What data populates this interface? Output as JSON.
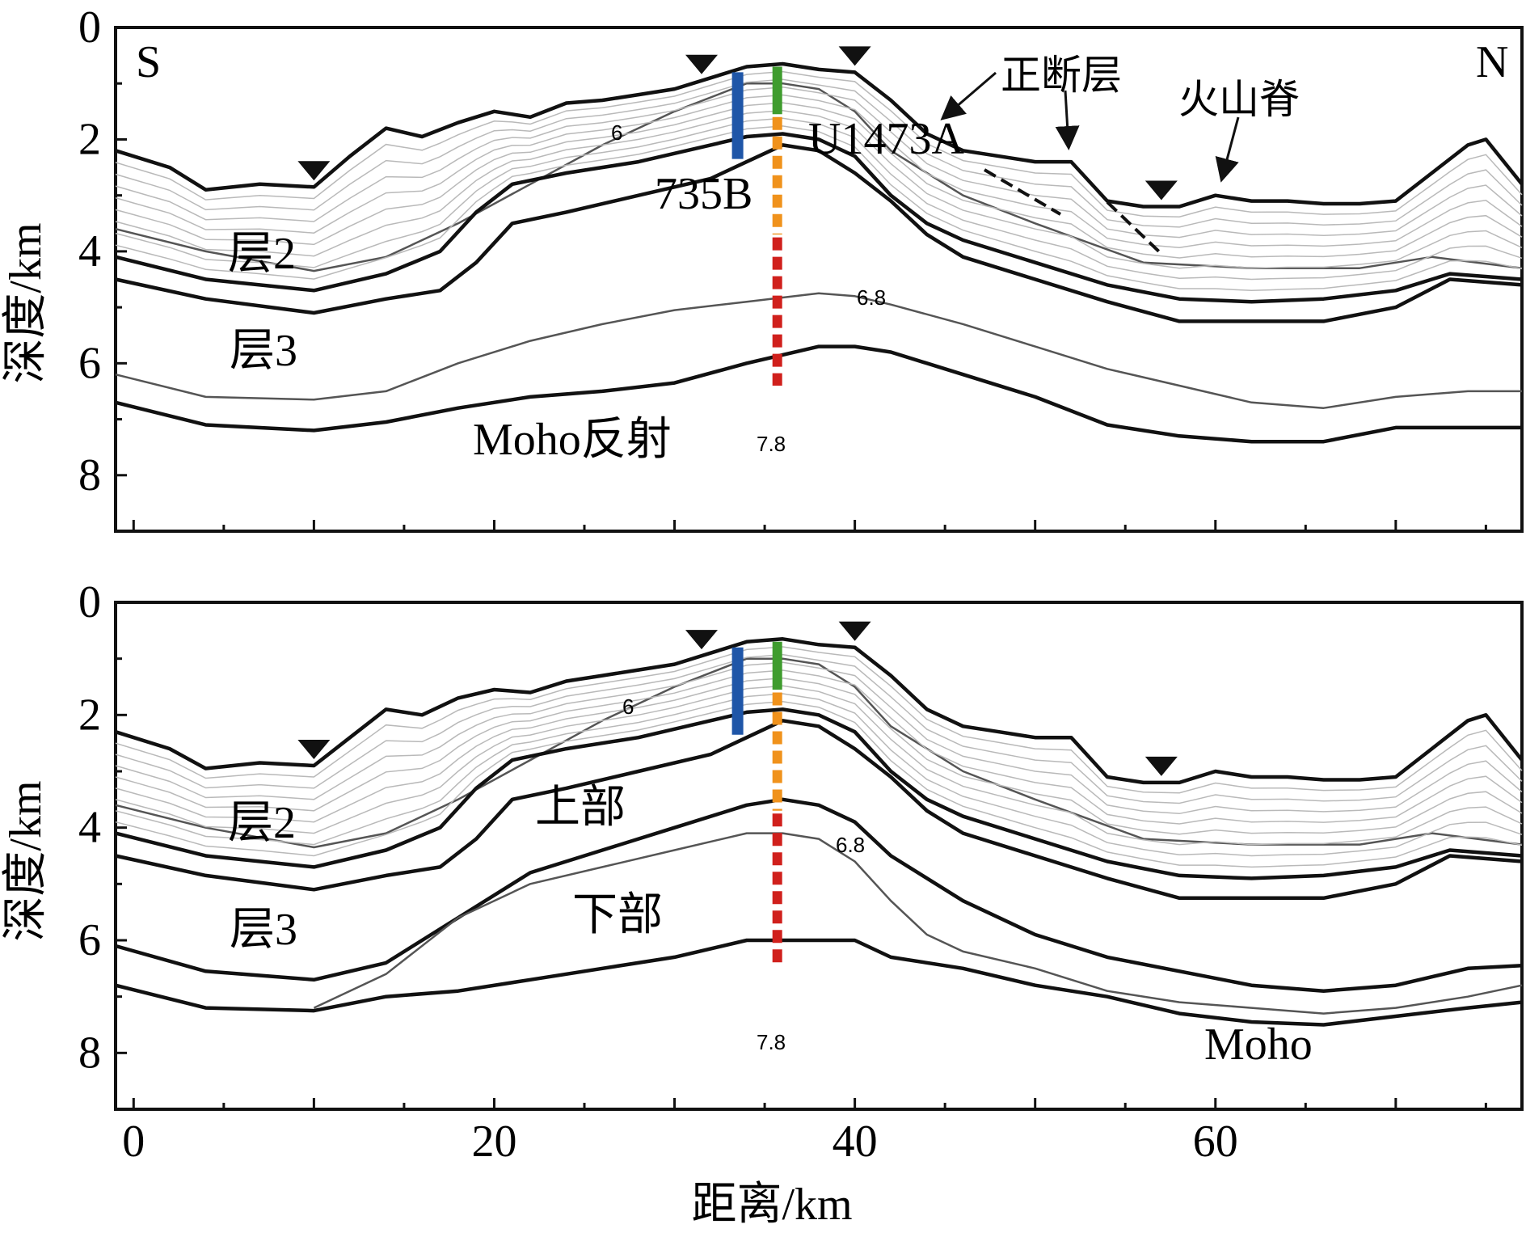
{
  "chart_data": [
    {
      "type": "line",
      "title": "",
      "xlabel": "距离/km",
      "ylabel": "深度/km",
      "xlim": [
        -1,
        77
      ],
      "ylim": [
        9,
        0
      ],
      "x_ticks": [
        0,
        20,
        40,
        60
      ],
      "y_ticks": [
        0,
        2,
        4,
        6,
        8
      ],
      "direction_labels": {
        "left": "S",
        "right": "N"
      },
      "layer_labels": [
        "层2",
        "层3",
        "Moho反射"
      ],
      "annotations": [
        "正断层",
        "火山脊",
        "U1473A",
        "735B"
      ],
      "contour_labels": [
        "6",
        "6.8",
        "7.8"
      ],
      "series": [
        {
          "name": "seafloor",
          "x": [
            -1,
            2,
            4,
            7,
            10,
            12,
            14,
            16,
            18,
            20,
            22,
            24,
            26,
            28,
            30,
            32,
            34,
            36,
            38,
            40,
            42,
            44,
            46,
            48,
            50,
            52,
            54,
            56,
            58,
            60,
            62,
            64,
            66,
            68,
            70,
            72,
            74,
            75,
            77
          ],
          "y": [
            2.2,
            2.5,
            2.9,
            2.8,
            2.85,
            2.3,
            1.8,
            1.95,
            1.7,
            1.5,
            1.6,
            1.35,
            1.3,
            1.2,
            1.1,
            0.9,
            0.7,
            0.65,
            0.75,
            0.8,
            1.3,
            1.9,
            2.2,
            2.3,
            2.4,
            2.4,
            3.1,
            3.2,
            3.2,
            3.0,
            3.1,
            3.1,
            3.15,
            3.15,
            3.1,
            2.6,
            2.1,
            2.0,
            2.8
          ]
        },
        {
          "name": "contour 6",
          "x": [
            -1,
            4,
            10,
            14,
            18,
            22,
            26,
            30,
            34,
            36,
            38,
            40,
            42,
            46,
            50,
            56,
            62,
            68,
            72,
            77
          ],
          "y": [
            3.6,
            4.0,
            4.35,
            4.1,
            3.5,
            2.8,
            2.1,
            1.5,
            1.0,
            1.0,
            1.1,
            1.5,
            2.2,
            3.0,
            3.5,
            4.2,
            4.3,
            4.3,
            4.1,
            4.3
          ]
        },
        {
          "name": "base layer 2",
          "x": [
            -1,
            4,
            10,
            14,
            17,
            19,
            21,
            24,
            28,
            32,
            34,
            36,
            38,
            40,
            42,
            44,
            46,
            50,
            54,
            58,
            62,
            66,
            70,
            73,
            77
          ],
          "y": [
            4.1,
            4.5,
            4.7,
            4.4,
            4.0,
            3.3,
            2.8,
            2.6,
            2.4,
            2.1,
            1.95,
            1.9,
            2.0,
            2.3,
            3.0,
            3.5,
            3.8,
            4.2,
            4.6,
            4.85,
            4.9,
            4.85,
            4.7,
            4.4,
            4.5
          ]
        },
        {
          "name": "top layer 3",
          "x": [
            -1,
            4,
            10,
            14,
            17,
            19,
            21,
            24,
            28,
            32,
            34,
            36,
            38,
            40,
            42,
            44,
            46,
            50,
            54,
            58,
            62,
            66,
            70,
            73,
            77
          ],
          "y": [
            4.5,
            4.85,
            5.1,
            4.85,
            4.7,
            4.2,
            3.5,
            3.3,
            3.0,
            2.7,
            2.4,
            2.1,
            2.2,
            2.6,
            3.1,
            3.7,
            4.1,
            4.5,
            4.9,
            5.25,
            5.25,
            5.25,
            5.0,
            4.5,
            4.6
          ]
        },
        {
          "name": "contour 6.8",
          "x": [
            -1,
            4,
            10,
            14,
            18,
            22,
            26,
            30,
            34,
            38,
            40,
            42,
            46,
            50,
            54,
            58,
            62,
            66,
            70,
            74,
            77
          ],
          "y": [
            6.2,
            6.6,
            6.65,
            6.5,
            6.0,
            5.6,
            5.3,
            5.05,
            4.9,
            4.75,
            4.8,
            4.95,
            5.3,
            5.7,
            6.1,
            6.4,
            6.7,
            6.8,
            6.6,
            6.5,
            6.5
          ]
        },
        {
          "name": "Moho",
          "x": [
            -1,
            4,
            10,
            14,
            18,
            22,
            26,
            30,
            34,
            38,
            40,
            42,
            46,
            50,
            54,
            58,
            62,
            66,
            70,
            74,
            77
          ],
          "y": [
            6.7,
            7.1,
            7.2,
            7.05,
            6.8,
            6.6,
            6.5,
            6.35,
            6.0,
            5.7,
            5.7,
            5.8,
            6.2,
            6.6,
            7.1,
            7.3,
            7.4,
            7.4,
            7.15,
            7.15,
            7.15
          ]
        }
      ]
    },
    {
      "type": "line",
      "title": "",
      "xlabel": "距离/km",
      "ylabel": "深度/km",
      "xlim": [
        -1,
        77
      ],
      "ylim": [
        9,
        0
      ],
      "x_ticks": [
        0,
        20,
        40,
        60
      ],
      "y_ticks": [
        0,
        2,
        4,
        6,
        8
      ],
      "layer_labels": [
        "层2",
        "层3",
        "上部",
        "下部",
        "Moho"
      ],
      "contour_labels": [
        "6",
        "6.8",
        "7.8"
      ],
      "series": [
        {
          "name": "seafloor",
          "x": [
            -1,
            2,
            4,
            7,
            10,
            12,
            14,
            16,
            18,
            20,
            22,
            24,
            26,
            28,
            30,
            32,
            34,
            36,
            38,
            40,
            42,
            44,
            46,
            48,
            50,
            52,
            54,
            56,
            58,
            60,
            62,
            64,
            66,
            68,
            70,
            72,
            74,
            75,
            77
          ],
          "y": [
            2.3,
            2.6,
            2.95,
            2.85,
            2.9,
            2.4,
            1.9,
            2.0,
            1.7,
            1.55,
            1.6,
            1.4,
            1.3,
            1.2,
            1.1,
            0.9,
            0.7,
            0.65,
            0.75,
            0.8,
            1.3,
            1.9,
            2.2,
            2.3,
            2.4,
            2.4,
            3.1,
            3.2,
            3.2,
            3.0,
            3.1,
            3.1,
            3.15,
            3.15,
            3.1,
            2.6,
            2.1,
            2.0,
            2.8
          ]
        },
        {
          "name": "contour 6",
          "x": [
            -1,
            4,
            10,
            14,
            18,
            22,
            26,
            30,
            34,
            36,
            38,
            40,
            42,
            46,
            50,
            56,
            62,
            68,
            72,
            77
          ],
          "y": [
            3.6,
            4.0,
            4.35,
            4.1,
            3.5,
            2.8,
            2.1,
            1.5,
            1.0,
            1.0,
            1.1,
            1.5,
            2.2,
            3.0,
            3.5,
            4.2,
            4.3,
            4.3,
            4.1,
            4.3
          ]
        },
        {
          "name": "base layer 2",
          "x": [
            -1,
            4,
            10,
            14,
            17,
            19,
            21,
            24,
            28,
            32,
            34,
            36,
            38,
            40,
            42,
            44,
            46,
            50,
            54,
            58,
            62,
            66,
            70,
            73,
            77
          ],
          "y": [
            4.1,
            4.5,
            4.7,
            4.4,
            4.0,
            3.3,
            2.8,
            2.6,
            2.4,
            2.1,
            1.95,
            1.9,
            2.0,
            2.3,
            3.0,
            3.5,
            3.8,
            4.2,
            4.6,
            4.85,
            4.9,
            4.85,
            4.7,
            4.4,
            4.5
          ]
        },
        {
          "name": "top layer 3",
          "x": [
            -1,
            4,
            10,
            14,
            17,
            19,
            21,
            24,
            28,
            32,
            34,
            36,
            38,
            40,
            42,
            44,
            46,
            50,
            54,
            58,
            62,
            66,
            70,
            73,
            77
          ],
          "y": [
            4.5,
            4.85,
            5.1,
            4.85,
            4.7,
            4.2,
            3.5,
            3.3,
            3.0,
            2.7,
            2.4,
            2.1,
            2.2,
            2.6,
            3.1,
            3.7,
            4.1,
            4.5,
            4.9,
            5.25,
            5.25,
            5.25,
            5.0,
            4.5,
            4.6
          ]
        },
        {
          "name": "upper-lower boundary",
          "x": [
            -1,
            4,
            10,
            14,
            18,
            22,
            26,
            30,
            34,
            36,
            38,
            40,
            42,
            46,
            50,
            54,
            58,
            62,
            66,
            70,
            74,
            77
          ],
          "y": [
            6.1,
            6.55,
            6.7,
            6.4,
            5.6,
            4.8,
            4.4,
            4.0,
            3.6,
            3.5,
            3.6,
            3.9,
            4.5,
            5.3,
            5.9,
            6.3,
            6.55,
            6.8,
            6.9,
            6.8,
            6.5,
            6.45
          ]
        },
        {
          "name": "contour 6.8",
          "x": [
            10,
            14,
            18,
            22,
            26,
            30,
            34,
            36,
            38,
            40,
            42,
            44,
            46,
            50,
            54,
            58,
            62,
            66,
            70,
            74,
            77
          ],
          "y": [
            7.2,
            6.6,
            5.6,
            5.0,
            4.7,
            4.4,
            4.1,
            4.1,
            4.2,
            4.6,
            5.3,
            5.9,
            6.2,
            6.5,
            6.9,
            7.1,
            7.2,
            7.3,
            7.2,
            7.0,
            6.8
          ]
        },
        {
          "name": "Moho",
          "x": [
            -1,
            4,
            10,
            14,
            18,
            22,
            26,
            30,
            34,
            36,
            38,
            40,
            42,
            46,
            50,
            54,
            58,
            62,
            66,
            70,
            74,
            77
          ],
          "y": [
            6.8,
            7.2,
            7.25,
            7.0,
            6.9,
            6.7,
            6.5,
            6.3,
            6.0,
            6.0,
            6.0,
            6.0,
            6.3,
            6.5,
            6.8,
            7.0,
            7.3,
            7.45,
            7.5,
            7.35,
            7.2,
            7.1
          ]
        }
      ]
    }
  ],
  "colors": {
    "borehole_735B": "#1f56a8",
    "borehole_top_green": "#3f9c2e",
    "borehole_mid_orange": "#f0921c",
    "borehole_lower_red": "#d0201c"
  }
}
